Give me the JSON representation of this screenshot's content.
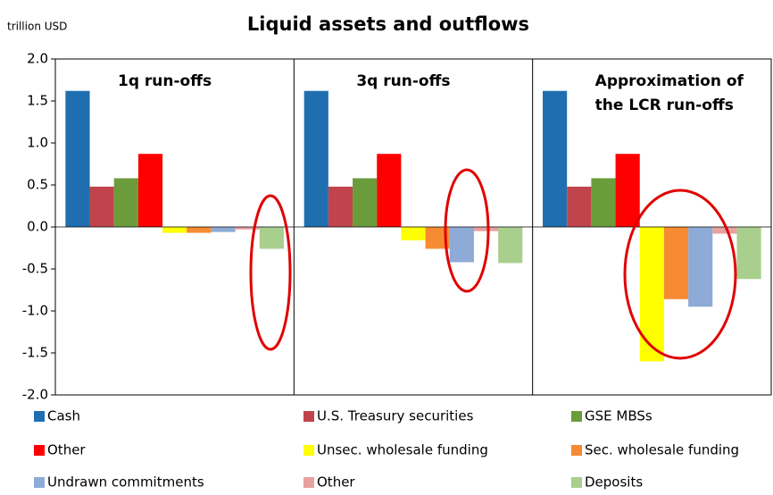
{
  "chart_data": {
    "type": "bar",
    "title": "Liquid assets and outflows",
    "y_label": "trillion USD",
    "categories": [
      "1q run-offs",
      "3q run-offs",
      "Approximation of the LCR run-offs"
    ],
    "series": [
      {
        "name": "Cash",
        "color": "#1f6fb0",
        "values": [
          1.62,
          1.62,
          1.62
        ]
      },
      {
        "name": "U.S. Treasury securities",
        "color": "#c1444c",
        "values": [
          0.48,
          0.48,
          0.48
        ]
      },
      {
        "name": "GSE MBSs",
        "color": "#6b9c3b",
        "values": [
          0.58,
          0.58,
          0.58
        ]
      },
      {
        "name": "Other",
        "color": "#ff0000",
        "values": [
          0.87,
          0.87,
          0.87
        ]
      },
      {
        "name": "Unsec. wholesale funding",
        "color": "#ffff00",
        "values": [
          -0.07,
          -0.16,
          -1.6
        ]
      },
      {
        "name": "Sec. wholesale funding",
        "color": "#f68b33",
        "values": [
          -0.07,
          -0.26,
          -0.86
        ]
      },
      {
        "name": "Undrawn commitments",
        "color": "#8eaad6",
        "values": [
          -0.06,
          -0.42,
          -0.95
        ]
      },
      {
        "name": "Other",
        "color": "#e9a0a0",
        "values": [
          -0.03,
          -0.05,
          -0.08
        ]
      },
      {
        "name": "Deposits",
        "color": "#a9cf8e",
        "values": [
          -0.26,
          -0.43,
          -0.62
        ]
      }
    ],
    "ylim": [
      -2,
      2
    ],
    "yticks": [
      {
        "value": 2,
        "label": "2.0"
      },
      {
        "value": 1.5,
        "label": "1.5"
      },
      {
        "value": 1,
        "label": "1.0"
      },
      {
        "value": 0.5,
        "label": "0.5"
      },
      {
        "value": 0,
        "label": "0.0"
      },
      {
        "value": -0.5,
        "label": "-0.5"
      },
      {
        "value": -1,
        "label": "-1.0"
      },
      {
        "value": -1.5,
        "label": "-1.5"
      },
      {
        "value": -2,
        "label": "-2.0"
      }
    ],
    "grid": false
  }
}
